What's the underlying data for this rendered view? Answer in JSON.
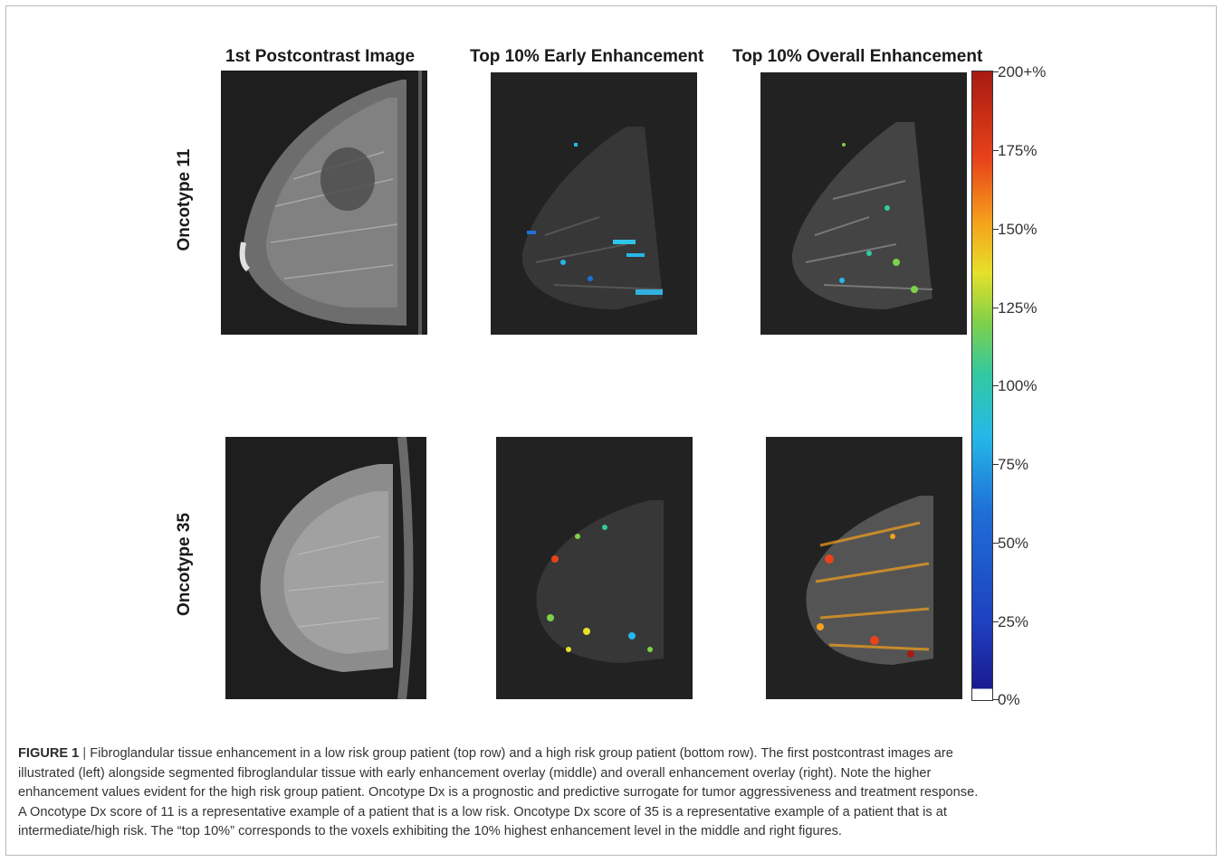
{
  "figure": {
    "column_titles": [
      "1st Postcontrast Image",
      "Top 10% Early Enhancement",
      "Top 10% Overall Enhancement"
    ],
    "row_labels": [
      "Oncotype 11",
      "Oncotype 35"
    ],
    "colorbar": {
      "tick_labels": [
        "200+%",
        "175%",
        "150%",
        "125%",
        "100%",
        "75%",
        "50%",
        "25%",
        "0%"
      ],
      "colors": {
        "low": "#1a1a8f",
        "mid_low": "#25b8e8",
        "mid": "#7fd04a",
        "mid_high": "#e6e02a",
        "high_mid": "#f5a11c",
        "high": "#a81a12",
        "zero": "#ffffff"
      }
    },
    "panel_background": "#222222"
  },
  "caption": {
    "label": "FIGURE 1",
    "separator": "|",
    "lines": [
      "Fibroglandular tissue enhancement in a low risk group patient (top row) and a high risk group patient (bottom row). The first postcontrast images are",
      "illustrated (left) alongside segmented fibroglandular tissue with early enhancement overlay (middle) and overall enhancement overlay (right). Note the higher",
      "enhancement values evident for the high risk group patient. Oncotype Dx is a prognostic and predictive surrogate for tumor aggressiveness and treatment response.",
      "A Oncotype Dx score of 11 is a representative example of a patient that is a low risk. Oncotype Dx score of 35 is a representative example of a patient that is at",
      "intermediate/high risk. The “top 10%” corresponds to the voxels exhibiting the 10% highest enhancement level in the middle and right figures."
    ]
  }
}
